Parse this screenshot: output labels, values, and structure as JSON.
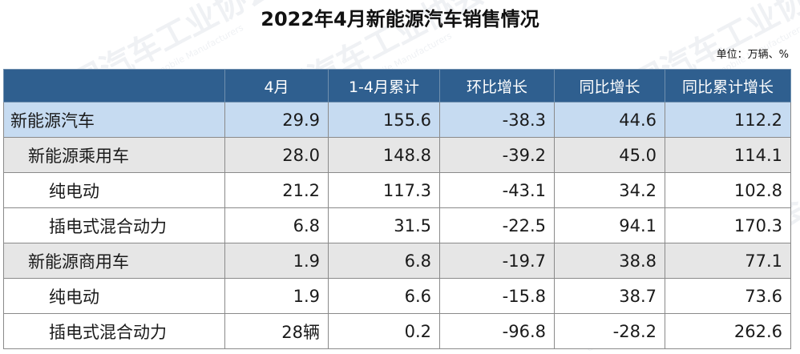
{
  "title": "2022年4月新能源汽车销售情况",
  "unit": "单位：万辆、%",
  "columns": [
    "",
    "4月",
    "1-4月累计",
    "环比增长",
    "同比增长",
    "同比累计增长"
  ],
  "rows": [
    {
      "name": "新能源汽车",
      "level": 0,
      "cells": [
        "29.9",
        "155.6",
        "-38.3",
        "44.6",
        "112.2"
      ]
    },
    {
      "name": "新能源乘用车",
      "level": 1,
      "cells": [
        "28.0",
        "148.8",
        "-39.2",
        "45.0",
        "114.1"
      ]
    },
    {
      "name": "纯电动",
      "level": 2,
      "cells": [
        "21.2",
        "117.3",
        "-43.1",
        "34.2",
        "102.8"
      ]
    },
    {
      "name": "插电式混合动力",
      "level": 2,
      "cells": [
        "6.8",
        "31.5",
        "-22.5",
        "94.1",
        "170.3"
      ]
    },
    {
      "name": "新能源商用车",
      "level": 1,
      "cells": [
        "1.9",
        "6.8",
        "-19.7",
        "38.8",
        "77.1"
      ]
    },
    {
      "name": "纯电动",
      "level": 2,
      "cells": [
        "1.9",
        "6.6",
        "-15.8",
        "38.7",
        "73.6"
      ]
    },
    {
      "name": "插电式混合动力",
      "level": 2,
      "cells": [
        "28辆",
        "0.2",
        "-96.8",
        "-28.2",
        "262.6"
      ]
    }
  ],
  "colors": {
    "header_bg": "#2f5f8f",
    "level0_bg": "#c6dbf1",
    "level1_bg": "#e6e6e6",
    "level2_bg": "#ffffff"
  },
  "watermark": {
    "text": "中国汽车工业协会",
    "sub": "China Association of Automobile Manufacturers"
  }
}
